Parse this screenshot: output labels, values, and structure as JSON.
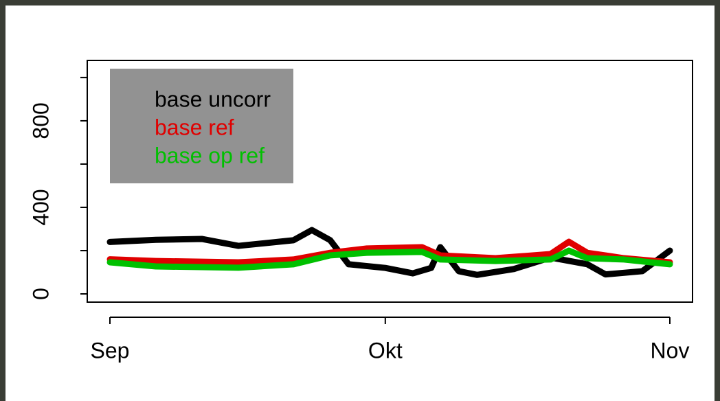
{
  "chart_data": {
    "type": "line",
    "xlim": [
      0,
      61
    ],
    "xticks": [
      {
        "value": 0,
        "label": "Sep"
      },
      {
        "value": 30,
        "label": "Okt"
      },
      {
        "value": 61,
        "label": "Nov"
      }
    ],
    "ylim": [
      -38,
      1079
    ],
    "yticks": [
      0,
      400,
      800
    ],
    "yticks_minor": [
      200,
      600,
      1000
    ],
    "legend": "top-left",
    "series": [
      {
        "name": "base uncorr",
        "color": "#000000",
        "x": [
          0,
          5,
          10,
          14,
          20,
          22,
          24,
          26,
          30,
          33,
          35,
          36,
          38,
          40,
          44,
          48,
          52,
          54,
          58,
          61
        ],
        "values": [
          240,
          250,
          254,
          222,
          248,
          295,
          248,
          137,
          120,
          95,
          120,
          216,
          105,
          88,
          115,
          168,
          137,
          90,
          105,
          200
        ]
      },
      {
        "name": "base ref",
        "color": "#e00000",
        "x": [
          0,
          5,
          14,
          20,
          24,
          28,
          34,
          36,
          42,
          48,
          50,
          52,
          56,
          61
        ],
        "values": [
          160,
          152,
          146,
          159,
          190,
          210,
          216,
          178,
          165,
          184,
          241,
          190,
          165,
          146
        ]
      },
      {
        "name": "base op ref",
        "color": "#00c000",
        "x": [
          0,
          5,
          14,
          20,
          24,
          28,
          34,
          36,
          42,
          48,
          50,
          52,
          56,
          61
        ],
        "values": [
          146,
          127,
          121,
          137,
          178,
          190,
          194,
          159,
          152,
          159,
          200,
          165,
          159,
          137
        ]
      }
    ]
  }
}
